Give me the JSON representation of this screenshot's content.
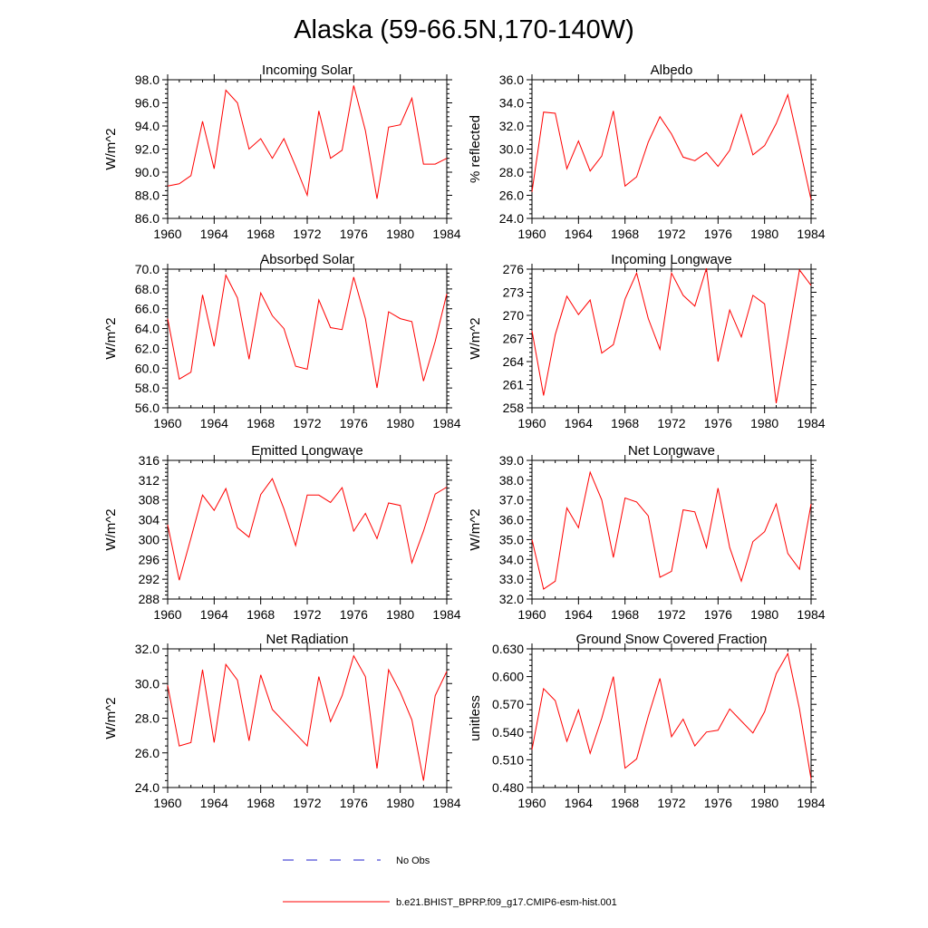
{
  "title": "Alaska (59-66.5N,170-140W)",
  "colors": {
    "model": "#ff0000",
    "obs": "#2222cc",
    "axis": "#000000"
  },
  "legend": {
    "obs_label": "No Obs",
    "model_label": "b.e21.BHIST_BPRP.f09_g17.CMIP6-esm-hist.001"
  },
  "chart_data": [
    {
      "type": "line",
      "title": "Incoming Solar",
      "ylabel": "W/m^2",
      "xlim": [
        1960,
        1984
      ],
      "ylim": [
        86,
        98
      ],
      "xticks": [
        1960,
        1964,
        1968,
        1972,
        1976,
        1980,
        1984
      ],
      "xtick_labels": [
        "1960",
        "1964",
        "1968",
        "1972",
        "1976",
        "1980",
        "1984"
      ],
      "yticks": [
        86,
        88,
        90,
        92,
        94,
        96,
        98
      ],
      "ytick_labels": [
        "86.0",
        "88.0",
        "90.0",
        "92.0",
        "94.0",
        "96.0",
        "98.0"
      ],
      "grid": false,
      "x": [
        1960,
        1961,
        1962,
        1963,
        1964,
        1965,
        1966,
        1967,
        1968,
        1969,
        1970,
        1971,
        1972,
        1973,
        1974,
        1975,
        1976,
        1977,
        1978,
        1979,
        1980,
        1981,
        1982,
        1983,
        1984
      ],
      "series": [
        {
          "name": "b.e21.BHIST_BPRP.f09_g17.CMIP6-esm-hist.001",
          "values": [
            88.8,
            89.0,
            89.7,
            94.4,
            90.3,
            97.1,
            96.0,
            92.0,
            92.9,
            91.2,
            92.9,
            90.5,
            88.0,
            95.3,
            91.2,
            91.9,
            97.5,
            93.6,
            87.7,
            93.9,
            94.1,
            96.4,
            90.7,
            90.7,
            91.2
          ]
        }
      ]
    },
    {
      "type": "line",
      "title": "Albedo",
      "ylabel": "% reflected",
      "xlim": [
        1960,
        1984
      ],
      "ylim": [
        24,
        36
      ],
      "xticks": [
        1960,
        1964,
        1968,
        1972,
        1976,
        1980,
        1984
      ],
      "xtick_labels": [
        "1960",
        "1964",
        "1968",
        "1972",
        "1976",
        "1980",
        "1984"
      ],
      "yticks": [
        24,
        26,
        28,
        30,
        32,
        34,
        36
      ],
      "ytick_labels": [
        "24.0",
        "26.0",
        "28.0",
        "30.0",
        "32.0",
        "34.0",
        "36.0"
      ],
      "grid": false,
      "x": [
        1960,
        1961,
        1962,
        1963,
        1964,
        1965,
        1966,
        1967,
        1968,
        1969,
        1970,
        1971,
        1972,
        1973,
        1974,
        1975,
        1976,
        1977,
        1978,
        1979,
        1980,
        1981,
        1982,
        1983,
        1984
      ],
      "series": [
        {
          "name": "b.e21.BHIST_BPRP.f09_g17.CMIP6-esm-hist.001",
          "values": [
            26.3,
            33.2,
            33.1,
            28.3,
            30.7,
            28.1,
            29.4,
            33.3,
            26.8,
            27.6,
            30.6,
            32.8,
            31.3,
            29.3,
            29.0,
            29.7,
            28.5,
            29.9,
            33.0,
            29.5,
            30.3,
            32.2,
            34.7,
            30.2,
            25.6
          ]
        }
      ]
    },
    {
      "type": "line",
      "title": "Absorbed Solar",
      "ylabel": "W/m^2",
      "xlim": [
        1960,
        1984
      ],
      "ylim": [
        56,
        70
      ],
      "xticks": [
        1960,
        1964,
        1968,
        1972,
        1976,
        1980,
        1984
      ],
      "xtick_labels": [
        "1960",
        "1964",
        "1968",
        "1972",
        "1976",
        "1980",
        "1984"
      ],
      "yticks": [
        56,
        58,
        60,
        62,
        64,
        66,
        68,
        70
      ],
      "ytick_labels": [
        "56.0",
        "58.0",
        "60.0",
        "62.0",
        "64.0",
        "66.0",
        "68.0",
        "70.0"
      ],
      "grid": false,
      "x": [
        1960,
        1961,
        1962,
        1963,
        1964,
        1965,
        1966,
        1967,
        1968,
        1969,
        1970,
        1971,
        1972,
        1973,
        1974,
        1975,
        1976,
        1977,
        1978,
        1979,
        1980,
        1981,
        1982,
        1983,
        1984
      ],
      "series": [
        {
          "name": "b.e21.BHIST_BPRP.f09_g17.CMIP6-esm-hist.001",
          "values": [
            65.0,
            58.9,
            59.6,
            67.4,
            62.2,
            69.4,
            67.1,
            60.9,
            67.6,
            65.3,
            64.0,
            60.2,
            59.9,
            66.9,
            64.1,
            63.9,
            69.2,
            65.0,
            58.0,
            65.7,
            65.0,
            64.7,
            58.7,
            62.7,
            67.5
          ]
        }
      ]
    },
    {
      "type": "line",
      "title": "Incoming Longwave",
      "ylabel": "W/m^2",
      "xlim": [
        1960,
        1984
      ],
      "ylim": [
        258,
        276
      ],
      "xticks": [
        1960,
        1964,
        1968,
        1972,
        1976,
        1980,
        1984
      ],
      "xtick_labels": [
        "1960",
        "1964",
        "1968",
        "1972",
        "1976",
        "1980",
        "1984"
      ],
      "yticks": [
        258,
        261,
        264,
        267,
        270,
        273,
        276
      ],
      "ytick_labels": [
        "258",
        "261",
        "264",
        "267",
        "270",
        "273",
        "276"
      ],
      "grid": false,
      "x": [
        1960,
        1961,
        1962,
        1963,
        1964,
        1965,
        1966,
        1967,
        1968,
        1969,
        1970,
        1971,
        1972,
        1973,
        1974,
        1975,
        1976,
        1977,
        1978,
        1979,
        1980,
        1981,
        1982,
        1983,
        1984
      ],
      "series": [
        {
          "name": "b.e21.BHIST_BPRP.f09_g17.CMIP6-esm-hist.001",
          "values": [
            268.0,
            259.6,
            267.5,
            272.5,
            270.1,
            272.0,
            265.1,
            266.2,
            272.1,
            275.5,
            269.6,
            265.6,
            275.5,
            272.6,
            271.2,
            276.1,
            264.0,
            270.7,
            267.2,
            272.6,
            271.5,
            258.6,
            267.0,
            275.9,
            273.9
          ]
        }
      ]
    },
    {
      "type": "line",
      "title": "Emitted Longwave",
      "ylabel": "W/m^2",
      "xlim": [
        1960,
        1984
      ],
      "ylim": [
        288,
        316
      ],
      "xticks": [
        1960,
        1964,
        1968,
        1972,
        1976,
        1980,
        1984
      ],
      "xtick_labels": [
        "1960",
        "1964",
        "1968",
        "1972",
        "1976",
        "1980",
        "1984"
      ],
      "yticks": [
        288,
        292,
        296,
        300,
        304,
        308,
        312,
        316
      ],
      "ytick_labels": [
        "288",
        "292",
        "296",
        "300",
        "304",
        "308",
        "312",
        "316"
      ],
      "grid": false,
      "x": [
        1960,
        1961,
        1962,
        1963,
        1964,
        1965,
        1966,
        1967,
        1968,
        1969,
        1970,
        1971,
        1972,
        1973,
        1974,
        1975,
        1976,
        1977,
        1978,
        1979,
        1980,
        1981,
        1982,
        1983,
        1984
      ],
      "series": [
        {
          "name": "b.e21.BHIST_BPRP.f09_g17.CMIP6-esm-hist.001",
          "values": [
            303.0,
            291.8,
            300.3,
            309.0,
            305.9,
            310.3,
            302.4,
            300.5,
            309.1,
            312.3,
            306.2,
            298.8,
            309.0,
            309.0,
            307.5,
            310.5,
            301.7,
            305.3,
            300.2,
            307.4,
            306.9,
            295.3,
            301.7,
            309.2,
            310.6
          ]
        }
      ]
    },
    {
      "type": "line",
      "title": "Net Longwave",
      "ylabel": "W/m^2",
      "xlim": [
        1960,
        1984
      ],
      "ylim": [
        32,
        39
      ],
      "xticks": [
        1960,
        1964,
        1968,
        1972,
        1976,
        1980,
        1984
      ],
      "xtick_labels": [
        "1960",
        "1964",
        "1968",
        "1972",
        "1976",
        "1980",
        "1984"
      ],
      "yticks": [
        32,
        33,
        34,
        35,
        36,
        37,
        38,
        39
      ],
      "ytick_labels": [
        "32.0",
        "33.0",
        "34.0",
        "35.0",
        "36.0",
        "37.0",
        "38.0",
        "39.0"
      ],
      "grid": false,
      "x": [
        1960,
        1961,
        1962,
        1963,
        1964,
        1965,
        1966,
        1967,
        1968,
        1969,
        1970,
        1971,
        1972,
        1973,
        1974,
        1975,
        1976,
        1977,
        1978,
        1979,
        1980,
        1981,
        1982,
        1983,
        1984
      ],
      "series": [
        {
          "name": "b.e21.BHIST_BPRP.f09_g17.CMIP6-esm-hist.001",
          "values": [
            35.0,
            32.5,
            32.9,
            36.6,
            35.6,
            38.4,
            37.0,
            34.1,
            37.1,
            36.9,
            36.2,
            33.1,
            33.4,
            36.5,
            36.4,
            34.6,
            37.6,
            34.6,
            32.9,
            34.9,
            35.4,
            36.8,
            34.3,
            33.5,
            36.8
          ]
        }
      ]
    },
    {
      "type": "line",
      "title": "Net Radiation",
      "ylabel": "W/m^2",
      "xlim": [
        1960,
        1984
      ],
      "ylim": [
        24,
        32
      ],
      "xticks": [
        1960,
        1964,
        1968,
        1972,
        1976,
        1980,
        1984
      ],
      "xtick_labels": [
        "1960",
        "1964",
        "1968",
        "1972",
        "1976",
        "1980",
        "1984"
      ],
      "yticks": [
        24,
        26,
        28,
        30,
        32
      ],
      "ytick_labels": [
        "24.0",
        "26.0",
        "28.0",
        "30.0",
        "32.0"
      ],
      "grid": false,
      "x": [
        1960,
        1961,
        1962,
        1963,
        1964,
        1965,
        1966,
        1967,
        1968,
        1969,
        1970,
        1971,
        1972,
        1973,
        1974,
        1975,
        1976,
        1977,
        1978,
        1979,
        1980,
        1981,
        1982,
        1983,
        1984
      ],
      "series": [
        {
          "name": "b.e21.BHIST_BPRP.f09_g17.CMIP6-esm-hist.001",
          "values": [
            29.9,
            26.4,
            26.6,
            30.8,
            26.6,
            31.1,
            30.2,
            26.7,
            30.5,
            28.5,
            27.8,
            27.1,
            26.4,
            30.4,
            27.8,
            29.3,
            31.6,
            30.4,
            25.1,
            30.8,
            29.5,
            27.9,
            24.4,
            29.3,
            30.7
          ]
        }
      ]
    },
    {
      "type": "line",
      "title": "Ground Snow Covered Fraction",
      "ylabel": "unitless",
      "xlim": [
        1960,
        1984
      ],
      "ylim": [
        0.48,
        0.63
      ],
      "xticks": [
        1960,
        1964,
        1968,
        1972,
        1976,
        1980,
        1984
      ],
      "xtick_labels": [
        "1960",
        "1964",
        "1968",
        "1972",
        "1976",
        "1980",
        "1984"
      ],
      "yticks": [
        0.48,
        0.51,
        0.54,
        0.57,
        0.6,
        0.63
      ],
      "ytick_labels": [
        "0.480",
        "0.510",
        "0.540",
        "0.570",
        "0.600",
        "0.630"
      ],
      "grid": false,
      "x": [
        1960,
        1961,
        1962,
        1963,
        1964,
        1965,
        1966,
        1967,
        1968,
        1969,
        1970,
        1971,
        1972,
        1973,
        1974,
        1975,
        1976,
        1977,
        1978,
        1979,
        1980,
        1981,
        1982,
        1983,
        1984
      ],
      "series": [
        {
          "name": "b.e21.BHIST_BPRP.f09_g17.CMIP6-esm-hist.001",
          "values": [
            0.521,
            0.587,
            0.574,
            0.53,
            0.564,
            0.517,
            0.555,
            0.6,
            0.501,
            0.511,
            0.557,
            0.598,
            0.535,
            0.554,
            0.525,
            0.54,
            0.542,
            0.565,
            0.552,
            0.539,
            0.562,
            0.603,
            0.625,
            0.565,
            0.489
          ]
        }
      ]
    }
  ]
}
